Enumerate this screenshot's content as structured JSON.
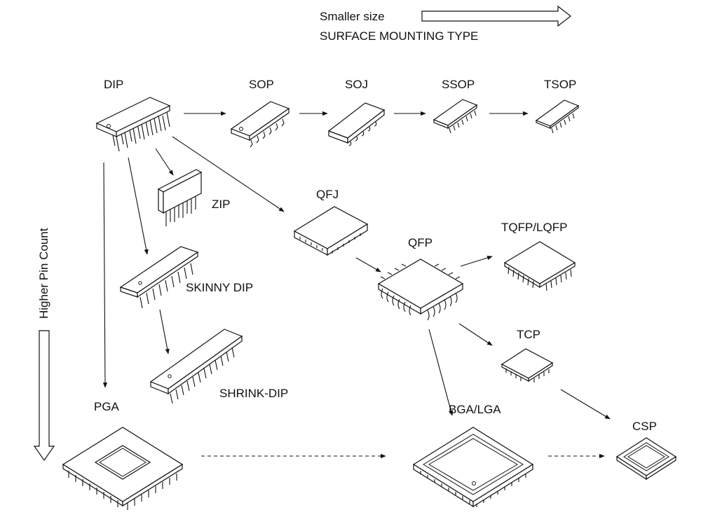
{
  "header": {
    "size_label": "Smaller size",
    "type_label": "SURFACE MOUNTING TYPE"
  },
  "side": {
    "pin_label": "Higher Pin Count"
  },
  "packages": {
    "dip": "DIP",
    "sop": "SOP",
    "soj": "SOJ",
    "ssop": "SSOP",
    "tsop": "TSOP",
    "zip": "ZIP",
    "qfj": "QFJ",
    "qfp": "QFP",
    "tqfp": "TQFP/LQFP",
    "skinny": "SKINNY DIP",
    "tcp": "TCP",
    "shrink": "SHRINK-DIP",
    "pga": "PGA",
    "bga": "BGA/LGA",
    "csp": "CSP"
  }
}
